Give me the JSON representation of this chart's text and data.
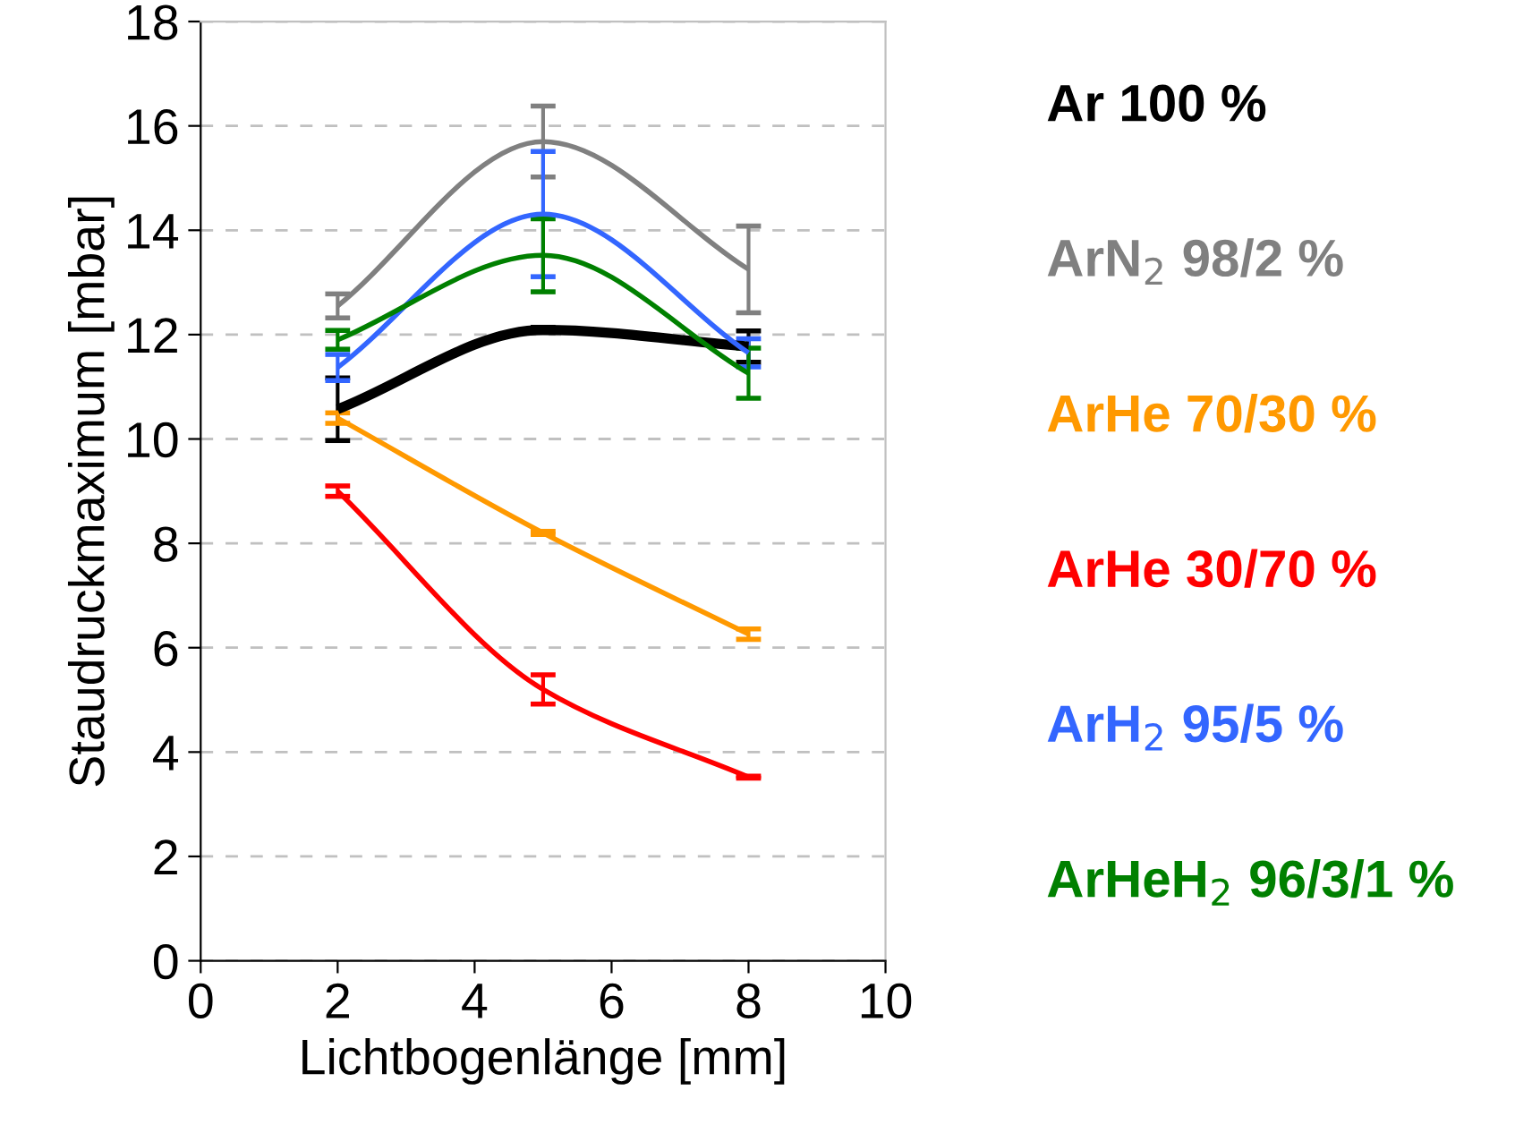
{
  "chart_data": {
    "type": "line",
    "xlabel": "Lichtbogenlänge [mm]",
    "ylabel": "Staudruckmaximum [mbar]",
    "x": [
      2,
      5,
      8
    ],
    "xlim": [
      0,
      10
    ],
    "xticks": [
      0,
      2,
      4,
      6,
      8,
      10
    ],
    "ylim": [
      0,
      18
    ],
    "yticks": [
      0,
      2,
      4,
      6,
      8,
      10,
      12,
      14,
      16,
      18
    ],
    "grid": "y",
    "legend": "right",
    "marker": "none",
    "line_style": "solid",
    "series": [
      {
        "name": "Ar 100 %",
        "color": "#000000",
        "values": [
          10.57,
          12.09,
          11.77
        ],
        "errors": [
          0.6,
          0.05,
          0.3
        ]
      },
      {
        "name": "ArN$_{2}$ 98/2 %",
        "color": "#808080",
        "values": [
          12.55,
          15.7,
          13.25
        ],
        "errors": [
          0.23,
          0.68,
          0.83
        ]
      },
      {
        "name": "ArHe 70/30 %",
        "color": "#ff9900",
        "values": [
          10.4,
          8.2,
          6.26
        ],
        "errors": [
          0.1,
          0.03,
          0.1
        ]
      },
      {
        "name": "ArHe 30/70 %",
        "color": "#ff0000",
        "values": [
          9.0,
          5.2,
          3.52
        ],
        "errors": [
          0.1,
          0.28,
          0.02
        ]
      },
      {
        "name": "ArH$_{2}$ 95/5 %",
        "color": "#3366ff",
        "values": [
          11.37,
          14.31,
          11.65
        ],
        "errors": [
          0.25,
          1.2,
          0.27
        ]
      },
      {
        "name": "ArHeH$_{2}$ 96/3/1 %",
        "color": "#008000",
        "values": [
          11.9,
          13.52,
          11.26
        ],
        "errors": [
          0.18,
          0.7,
          0.48
        ]
      }
    ]
  }
}
